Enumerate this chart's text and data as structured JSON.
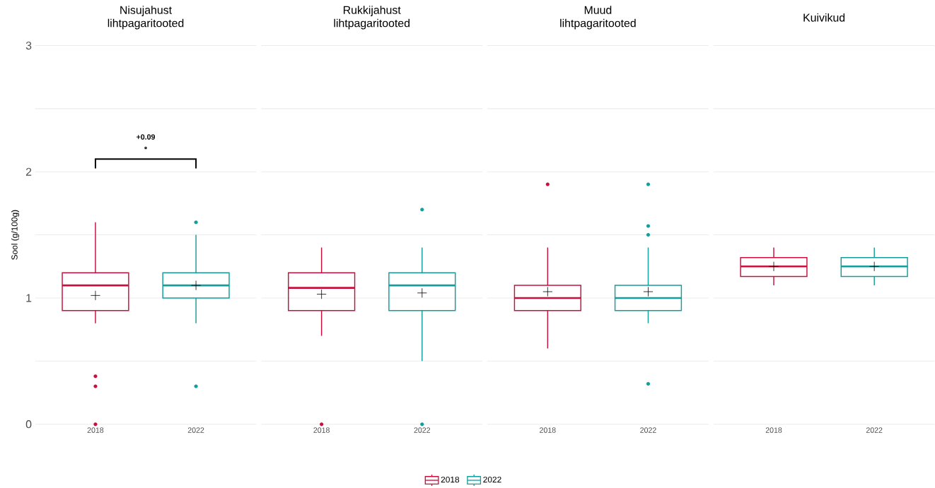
{
  "chart_data": [
    {
      "type": "box",
      "title": "Nisujahust lihtpagaritooted",
      "ylabel": "Sool (g/100g)",
      "categories": [
        "2018",
        "2022"
      ],
      "series": [
        {
          "name": "2018",
          "color": "#c8103c",
          "boxes": [
            {
              "low": 0.8,
              "q1": 0.9,
              "median": 1.1,
              "q3": 1.2,
              "high": 1.6,
              "mean": 1.02,
              "outliers": [
                0.38,
                0.3,
                0
              ]
            },
            null
          ]
        },
        {
          "name": "2022",
          "color": "#139e9c",
          "boxes": [
            null,
            {
              "low": 0.8,
              "q1": 1.0,
              "median": 1.1,
              "q3": 1.2,
              "high": 1.5,
              "mean": 1.1,
              "outliers": [
                1.6,
                0.3
              ]
            }
          ]
        }
      ],
      "ylim": [
        0,
        3
      ],
      "yticks": [
        0,
        {
          "value": 0.5,
          "label": null
        },
        1,
        {
          "value": 1.5,
          "label": null
        },
        2,
        {
          "value": 2.5,
          "label": null
        },
        3
      ],
      "grid": "y",
      "legend": "bottom",
      "annotations": [
        "+0.09",
        "*"
      ]
    },
    {
      "type": "box",
      "title": "Rukkijahust lihtpagaritooted",
      "categories": [
        "2018",
        "2022"
      ],
      "series": [
        {
          "color": "#c8103c",
          "boxes": [
            {
              "low": 0.7,
              "q1": 0.9,
              "median": 1.08,
              "q3": 1.2,
              "high": 1.4,
              "mean": 1.03,
              "outliers": [
                0
              ]
            },
            null
          ]
        },
        {
          "color": "#139e9c",
          "boxes": [
            null,
            {
              "low": 0.5,
              "q1": 0.9,
              "median": 1.1,
              "q3": 1.2,
              "high": 1.4,
              "mean": 1.04,
              "outliers": [
                1.7,
                0
              ]
            }
          ]
        }
      ],
      "ylim": [
        0,
        3
      ],
      "yticks": [
        0,
        {
          "value": 0.5,
          "label": null
        },
        1,
        {
          "value": 1.5,
          "label": null
        },
        2,
        {
          "value": 2.5,
          "label": null
        },
        3
      ],
      "grid": "y",
      "tick_labels": "x"
    },
    {
      "type": "box",
      "title": "Muud lihtpagaritooted",
      "categories": [
        "2018",
        "2022"
      ],
      "series": [
        {
          "color": "#c8103c",
          "boxes": [
            {
              "low": 0.6,
              "q1": 0.9,
              "median": 1.0,
              "q3": 1.1,
              "high": 1.4,
              "mean": 1.05,
              "outliers": [
                1.9
              ]
            },
            null
          ]
        },
        {
          "color": "#139e9c",
          "boxes": [
            null,
            {
              "low": 0.8,
              "q1": 0.9,
              "median": 1.0,
              "q3": 1.1,
              "high": 1.4,
              "mean": 1.05,
              "outliers": [
                1.9,
                1.57,
                1.5,
                0.32
              ]
            }
          ]
        }
      ],
      "ylim": [
        0,
        3
      ],
      "yticks": [
        0,
        {
          "value": 0.5,
          "label": null
        },
        1,
        {
          "value": 1.5,
          "label": null
        },
        2,
        {
          "value": 2.5,
          "label": null
        },
        3
      ],
      "grid": "y",
      "tick_labels": "x"
    },
    {
      "type": "box",
      "title": "Kuivikud",
      "categories": [
        "2018",
        "2022"
      ],
      "series": [
        {
          "color": "#c8103c",
          "boxes": [
            {
              "low": 1.1,
              "q1": 1.17,
              "median": 1.25,
              "q3": 1.32,
              "high": 1.4,
              "mean": 1.25
            },
            null
          ]
        },
        {
          "color": "#139e9c",
          "boxes": [
            null,
            {
              "low": 1.1,
              "q1": 1.17,
              "median": 1.25,
              "q3": 1.32,
              "high": 1.4,
              "mean": 1.25
            }
          ]
        }
      ],
      "ylim": [
        0,
        3
      ],
      "yticks": [
        0,
        {
          "value": 0.5,
          "label": null
        },
        1,
        {
          "value": 1.5,
          "label": null
        },
        2,
        {
          "value": 2.5,
          "label": null
        },
        3
      ],
      "grid": "y",
      "tick_labels": "x"
    }
  ]
}
